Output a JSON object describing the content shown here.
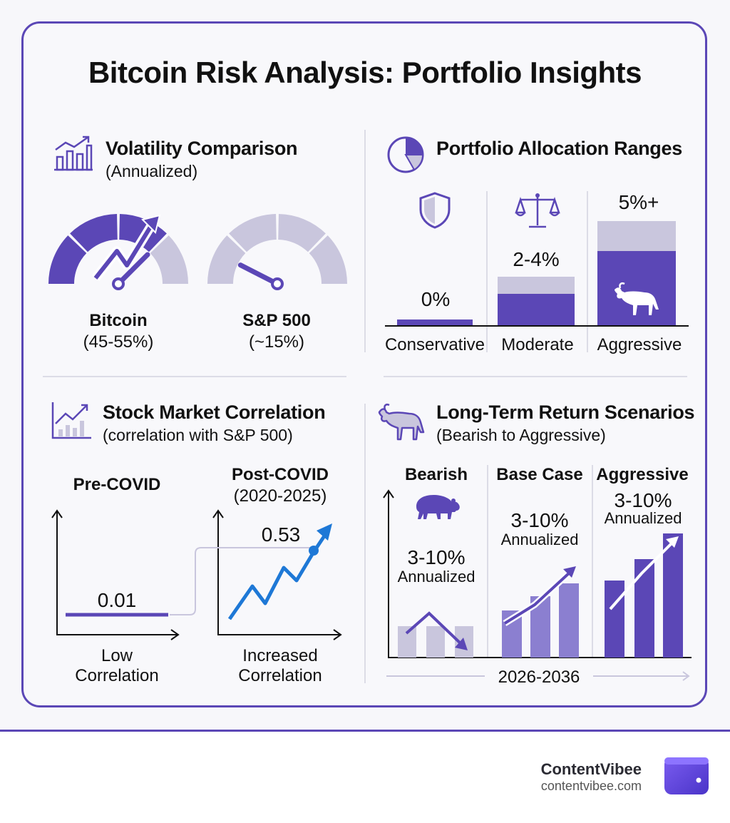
{
  "title": "Bitcoin Risk Analysis: Portfolio Insights",
  "colors": {
    "accent": "#5b47b6",
    "light": "#c9c6dd",
    "blue": "#1e78d6",
    "mid": "#8b7fd0"
  },
  "volatility": {
    "title": "Volatility Comparison",
    "subtitle": "(Annualized)",
    "icon": "bar-chart-trend-icon",
    "gauges": [
      {
        "name": "Bitcoin",
        "value": "(45-55%)",
        "level": 0.75
      },
      {
        "name": "S&P 500",
        "value": "(~15%)",
        "level": 0.15
      }
    ]
  },
  "allocation": {
    "title": "Portfolio Allocation Ranges",
    "icon": "pie-chart-icon",
    "profiles": [
      {
        "name": "Conservative",
        "value": "0%",
        "icon": "shield-icon"
      },
      {
        "name": "Moderate",
        "value": "2-4%",
        "icon": "balance-scale-icon"
      },
      {
        "name": "Aggressive",
        "value": "5%+",
        "icon": "bull-icon"
      }
    ]
  },
  "correlation": {
    "title": "Stock Market Correlation",
    "subtitle": "(correlation with S&P 500)",
    "icon": "line-chart-icon",
    "pre": {
      "title": "Pre-COVID",
      "value": "0.01",
      "caption_1": "Low",
      "caption_2": "Correlation"
    },
    "post": {
      "title": "Post-COVID",
      "period": "(2020-2025)",
      "value": "0.53",
      "caption_1": "Increased",
      "caption_2": "Correlation"
    }
  },
  "returns": {
    "title": "Long-Term Return Scenarios",
    "subtitle": "(Bearish to Aggressive)",
    "icon": "bull-icon",
    "period": "2026-2036",
    "scenarios": [
      {
        "name": "Bearish",
        "range": "3-10%",
        "unit": "Annualized",
        "icon": "bear-icon"
      },
      {
        "name": "Base Case",
        "range": "3-10%",
        "unit": "Annualized"
      },
      {
        "name": "Aggressive",
        "range": "3-10%",
        "unit": "Annualized"
      }
    ]
  },
  "footer": {
    "brand": "ContentVibee",
    "url": "contentvibee.com",
    "logo": "wallet-icon"
  }
}
